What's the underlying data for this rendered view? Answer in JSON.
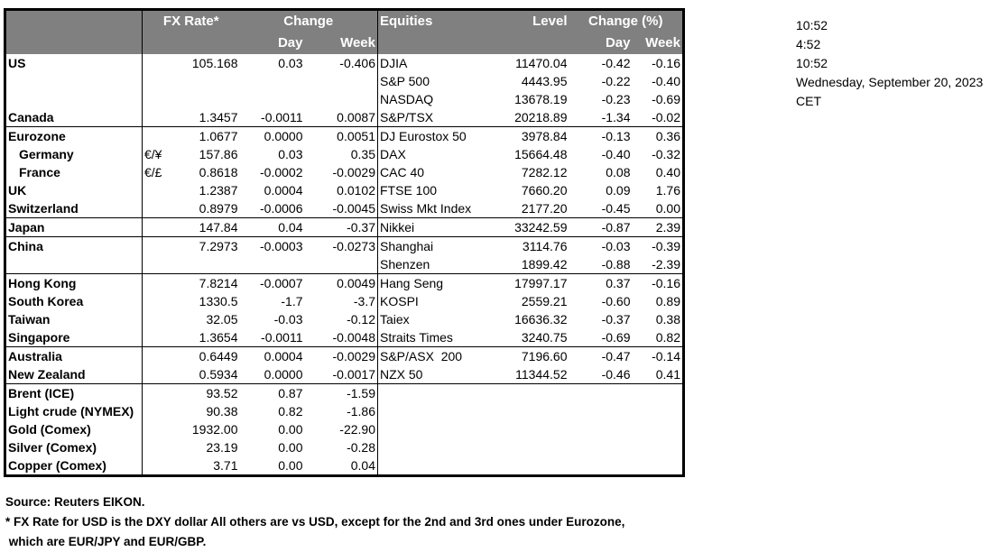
{
  "header": {
    "fx_rate": "FX Rate*",
    "change": "Change",
    "day": "Day",
    "week": "Week",
    "equities": "Equities",
    "level": "Level",
    "change_pct": "Change (%)",
    "eq_day": "Day",
    "eq_week": "Week"
  },
  "groups": [
    [
      {
        "name": "US",
        "fx": "105.168",
        "day": "0.03",
        "week": "-0.406",
        "eq": "DJIA",
        "level": "11470.04",
        "eday": "-0.42",
        "eweek": "-0.16"
      },
      {
        "name": "",
        "fx": "",
        "day": "",
        "week": "",
        "eq": "S&P 500",
        "level": "4443.95",
        "eday": "-0.22",
        "eweek": "-0.40"
      },
      {
        "name": "",
        "fx": "",
        "day": "",
        "week": "",
        "eq": "NASDAQ",
        "level": "13678.19",
        "eday": "-0.23",
        "eweek": "-0.69"
      },
      {
        "name": "Canada",
        "fx": "1.3457",
        "day": "-0.0011",
        "week": "0.0087",
        "eq": "S&P/TSX",
        "level": "20218.89",
        "eday": "-1.34",
        "eweek": "-0.02"
      }
    ],
    [
      {
        "name": "Eurozone",
        "fx": "1.0677",
        "day": "0.0000",
        "week": "0.0051",
        "eq": "DJ Eurostox 50",
        "level": "3978.84",
        "eday": "-0.13",
        "eweek": "0.36"
      },
      {
        "name": "Germany",
        "indent": true,
        "sym": "€/¥",
        "fx": "157.86",
        "day": "0.03",
        "week": "0.35",
        "eq": "DAX",
        "level": "15664.48",
        "eday": "-0.40",
        "eweek": "-0.32"
      },
      {
        "name": "France",
        "indent": true,
        "sym": "€/£",
        "fx": "0.8618",
        "day": "-0.0002",
        "week": "-0.0029",
        "eq": "CAC 40",
        "level": "7282.12",
        "eday": "0.08",
        "eweek": "0.40"
      },
      {
        "name": "UK",
        "fx": "1.2387",
        "day": "0.0004",
        "week": "0.0102",
        "eq": "FTSE 100",
        "level": "7660.20",
        "eday": "0.09",
        "eweek": "1.76"
      },
      {
        "name": "Switzerland",
        "fx": "0.8979",
        "day": "-0.0006",
        "week": "-0.0045",
        "eq": "Swiss Mkt Index",
        "level": "2177.20",
        "eday": "-0.45",
        "eweek": "0.00"
      }
    ],
    [
      {
        "name": "Japan",
        "fx": "147.84",
        "day": "0.04",
        "week": "-0.37",
        "eq": "Nikkei",
        "level": "33242.59",
        "eday": "-0.87",
        "eweek": "2.39"
      }
    ],
    [
      {
        "name": "China",
        "fx": "7.2973",
        "day": "-0.0003",
        "week": "-0.0273",
        "eq": "Shanghai",
        "level": "3114.76",
        "eday": "-0.03",
        "eweek": "-0.39"
      },
      {
        "name": "",
        "fx": "",
        "day": "",
        "week": "",
        "eq": "Shenzen",
        "level": "1899.42",
        "eday": "-0.88",
        "eweek": "-2.39"
      }
    ],
    [
      {
        "name": "Hong Kong",
        "fx": "7.8214",
        "day": "-0.0007",
        "week": "0.0049",
        "eq": "Hang Seng",
        "level": "17997.17",
        "eday": "0.37",
        "eweek": "-0.16"
      },
      {
        "name": "South Korea",
        "fx": "1330.5",
        "day": "-1.7",
        "week": "-3.7",
        "eq": "KOSPI",
        "level": "2559.21",
        "eday": "-0.60",
        "eweek": "0.89"
      },
      {
        "name": "Taiwan",
        "fx": "32.05",
        "day": "-0.03",
        "week": "-0.12",
        "eq": "Taiex",
        "level": "16636.32",
        "eday": "-0.37",
        "eweek": "0.38"
      },
      {
        "name": "Singapore",
        "fx": "1.3654",
        "day": "-0.0011",
        "week": "-0.0048",
        "eq": "Straits Times",
        "level": "3240.75",
        "eday": "-0.69",
        "eweek": "0.82"
      }
    ],
    [
      {
        "name": "Australia",
        "fx": "0.6449",
        "day": "0.0004",
        "week": "-0.0029",
        "eq": "S&P/ASX  200",
        "level": "7196.60",
        "eday": "-0.47",
        "eweek": "-0.14"
      },
      {
        "name": "New Zealand",
        "fx": "0.5934",
        "day": "0.0000",
        "week": "-0.0017",
        "eq": "NZX 50",
        "level": "11344.52",
        "eday": "-0.46",
        "eweek": "0.41"
      }
    ],
    [
      {
        "name": "Brent (ICE)",
        "fx": "93.52",
        "day": "0.87",
        "week": "-1.59",
        "eq": "",
        "level": "",
        "eday": "",
        "eweek": ""
      },
      {
        "name": "Light crude (NYMEX)",
        "fx": "90.38",
        "day": "0.82",
        "week": "-1.86",
        "eq": "",
        "level": "",
        "eday": "",
        "eweek": ""
      },
      {
        "name": "Gold (Comex)",
        "fx": "1932.00",
        "day": "0.00",
        "week": "-22.90",
        "eq": "",
        "level": "",
        "eday": "",
        "eweek": ""
      },
      {
        "name": "Silver (Comex)",
        "fx": "23.19",
        "day": "0.00",
        "week": "-0.28",
        "eq": "",
        "level": "",
        "eday": "",
        "eweek": ""
      },
      {
        "name": "Copper (Comex)",
        "fx": "3.71",
        "day": "0.00",
        "week": "0.04",
        "eq": "",
        "level": "",
        "eday": "",
        "eweek": ""
      }
    ]
  ],
  "notes": {
    "source": "Source:  Reuters EIKON.",
    "footnote1": "* FX Rate for USD is the DXY dollar  All others are vs USD, except for the 2nd and 3rd ones under Eurozone,",
    "footnote2": " which are EUR/JPY and EUR/GBP."
  },
  "side": [
    "10:52",
    "4:52",
    "10:52",
    "Wednesday, September 20, 2023",
    "CET"
  ]
}
